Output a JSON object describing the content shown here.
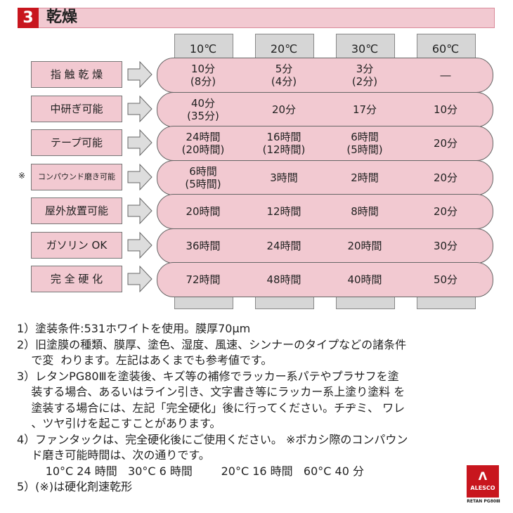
{
  "header": {
    "number": "3",
    "title": "乾燥"
  },
  "temperatures": [
    "10℃",
    "20℃",
    "30℃",
    "60℃"
  ],
  "rows": [
    {
      "label": "指 触 乾 燥",
      "mark": "",
      "values": [
        [
          "10分",
          "(8分)"
        ],
        [
          "5分",
          "(4分)"
        ],
        [
          "3分",
          "(2分)"
        ],
        [
          "―"
        ]
      ]
    },
    {
      "label": "中研ぎ可能",
      "mark": "",
      "values": [
        [
          "40分",
          "(35分)"
        ],
        [
          "20分"
        ],
        [
          "17分"
        ],
        [
          "10分"
        ]
      ]
    },
    {
      "label": "テープ可能",
      "mark": "",
      "values": [
        [
          "24時間",
          "(20時間)"
        ],
        [
          "16時間",
          "(12時間)"
        ],
        [
          "6時間",
          "(5時間)"
        ],
        [
          "20分"
        ]
      ]
    },
    {
      "label": "コンパウンド磨き可能",
      "mark": "※",
      "values": [
        [
          "6時間",
          "(5時間)"
        ],
        [
          "3時間"
        ],
        [
          "2時間"
        ],
        [
          "20分"
        ]
      ]
    },
    {
      "label": "屋外放置可能",
      "mark": "",
      "values": [
        [
          "20時間"
        ],
        [
          "12時間"
        ],
        [
          "8時間"
        ],
        [
          "20分"
        ]
      ]
    },
    {
      "label": "ガソリン OK",
      "mark": "",
      "values": [
        [
          "36時間"
        ],
        [
          "24時間"
        ],
        [
          "20時間"
        ],
        [
          "30分"
        ]
      ]
    },
    {
      "label": "完 全 硬 化",
      "mark": "",
      "values": [
        [
          "72時間"
        ],
        [
          "48時間"
        ],
        [
          "40時間"
        ],
        [
          "50分"
        ]
      ]
    }
  ],
  "notes": [
    "1）塗装条件:531ホワイトを使用。膜厚70μm",
    "2）旧塗膜の種類、膜厚、塗色、湿度、風速、シンナーのタイプなどの諸条件",
    "    で変  わります。左記はあくまでも参考値です。",
    "3）レタンPG80Ⅲを塗装後、キズ等の補修でラッカー系パテやプラサフを塗",
    "    装する場合、あるいはライン引き、文字書き等にラッカー系上塗り塗料 を",
    "    塗装する場合には、左記「完全硬化」後に行ってください。チヂミ、 ワレ",
    "    、ツヤ引けを起こすことがあります。",
    "4）ファンタックは、完全硬化後にご使用ください。 ※ボカシ際のコンパウン",
    "    ド磨き可能時間は、次の通りです。",
    "        10°C 24 時間   30°C 6 時間        20°C 16 時間   60°C 40 分",
    "5）(※)は硬化剤速乾形"
  ],
  "logo": {
    "text": "ALESCO",
    "sub": "RETAN PG80Ⅲ"
  },
  "colors": {
    "accent": "#c8161e",
    "pink": "#f2c9d1",
    "gray": "#d6d6d6"
  }
}
